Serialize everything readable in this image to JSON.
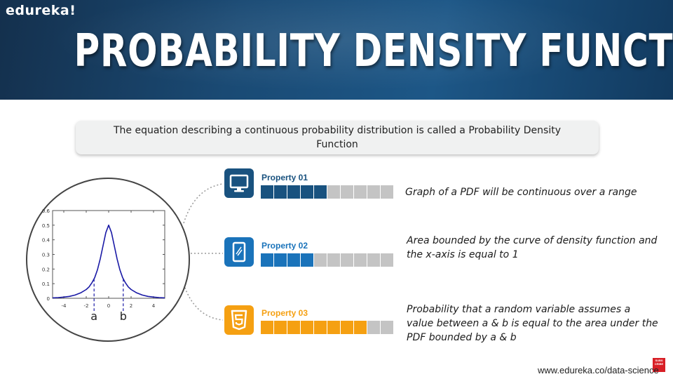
{
  "header": {
    "brand": "edureka!",
    "title": "PROBABILITY DENSITY FUNCTION",
    "colors": {
      "banner_dark": "#14304d",
      "banner_light": "#1d5787"
    }
  },
  "definition": {
    "text": "The equation describing a continuous probability distribution is called a Probability Density Function"
  },
  "graph": {
    "icon": "circle-graph",
    "marker_a": "a",
    "marker_b": "b"
  },
  "chart_data": {
    "type": "line",
    "title": "",
    "xlabel": "",
    "ylabel": "",
    "xlim": [
      -5,
      5
    ],
    "ylim": [
      0,
      0.6
    ],
    "x_ticks": [
      "-4",
      "-2",
      "0",
      "2",
      "4"
    ],
    "x_tick_values": [
      -4,
      -2,
      0,
      2,
      4
    ],
    "y_ticks": [
      "0",
      "0.1",
      "0.2",
      "0.3",
      "0.4",
      "0.5",
      "0.6"
    ],
    "y_tick_values": [
      0,
      0.1,
      0.2,
      0.3,
      0.4,
      0.5,
      0.6
    ],
    "series": [
      {
        "color": "#1a1aa6",
        "x": [
          -5,
          -4.5,
          -4,
          -3.5,
          -3,
          -2.5,
          -2,
          -1.75,
          -1.5,
          -1.25,
          -1,
          -0.75,
          -0.5,
          -0.25,
          0,
          0.25,
          0.5,
          0.75,
          1,
          1.25,
          1.5,
          1.75,
          2,
          2.5,
          3,
          3.5,
          4,
          4.5,
          5
        ],
        "y": [
          0.003,
          0.005,
          0.008,
          0.013,
          0.022,
          0.037,
          0.06,
          0.078,
          0.105,
          0.14,
          0.195,
          0.27,
          0.36,
          0.45,
          0.5,
          0.45,
          0.36,
          0.27,
          0.195,
          0.14,
          0.105,
          0.078,
          0.06,
          0.037,
          0.022,
          0.013,
          0.008,
          0.005,
          0.003
        ]
      }
    ],
    "markers": [
      {
        "label": "a",
        "x": -1.3
      },
      {
        "label": "b",
        "x": 1.3
      }
    ],
    "grid": false
  },
  "properties": [
    {
      "label": "Property 01",
      "icon": "monitor-icon",
      "color": "#19527f",
      "filled": 5,
      "total": 10,
      "description": "Graph of a PDF will be continuous over a range"
    },
    {
      "label": "Property 02",
      "icon": "tablet-icon",
      "color": "#1a73ba",
      "filled": 4,
      "total": 10,
      "description": "Area bounded by the curve of density function and the x-axis is equal to 1"
    },
    {
      "label": "Property 03",
      "icon": "html5-icon",
      "color": "#f5a012",
      "filled": 8,
      "total": 10,
      "description": "Probability that a random variable assumes a value between a & b is equal to the area under the PDF bounded by a & b"
    }
  ],
  "footer": {
    "url": "www.edureka.co/data-science",
    "subscribe_badge": "SUBSCRIBE"
  }
}
